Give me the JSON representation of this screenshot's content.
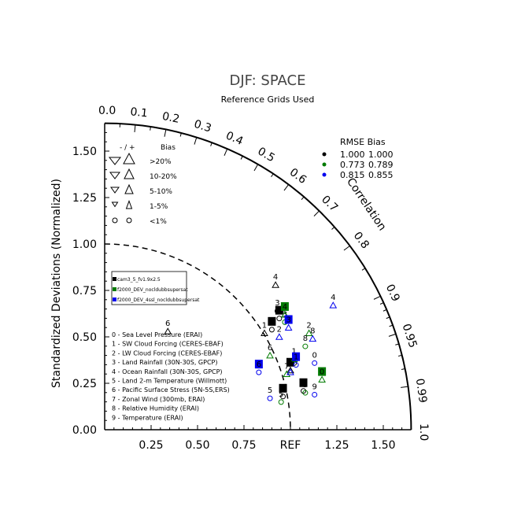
{
  "chart_data": {
    "type": "taylor",
    "title": "DJF: SPACE",
    "subtitle": "Reference Grids Used",
    "ylabel": "Standardized Deviations (Normalized)",
    "correlation_label": "Correlation",
    "ref_label": "REF",
    "xlim": [
      0,
      1.65
    ],
    "ylim": [
      0,
      1.65
    ],
    "x_tick_labels": [
      "0.25",
      "0.50",
      "0.75",
      "REF",
      "1.25",
      "1.50"
    ],
    "y_tick_labels": [
      "0.00",
      "0.25",
      "0.50",
      "0.75",
      "1.00",
      "1.25",
      "1.50"
    ],
    "corr_ticks": [
      {
        "r": 0.0,
        "label": "0.0"
      },
      {
        "r": 0.1,
        "label": "0.1"
      },
      {
        "r": 0.2,
        "label": "0.2"
      },
      {
        "r": 0.3,
        "label": "0.3"
      },
      {
        "r": 0.4,
        "label": "0.4"
      },
      {
        "r": 0.5,
        "label": "0.5"
      },
      {
        "r": 0.6,
        "label": "0.6"
      },
      {
        "r": 0.7,
        "label": "0.7"
      },
      {
        "r": 0.8,
        "label": "0.8"
      },
      {
        "r": 0.9,
        "label": "0.9"
      },
      {
        "r": 0.95,
        "label": "0.95"
      },
      {
        "r": 0.99,
        "label": "0.99"
      },
      {
        "r": 1.0,
        "label": "1.0"
      }
    ],
    "bias_legend": {
      "header": "-  /  +",
      "header_right": "Bias",
      "rows": [
        "&gt;20%",
        "10-20%",
        "5-10%",
        "1-5%",
        "&lt;1%"
      ]
    },
    "rmse_legend": {
      "header": "RMSE  Bias",
      "rows": [
        {
          "color": "#000000",
          "rmse": "1.000",
          "bias": "1.000"
        },
        {
          "color": "#007a00",
          "rmse": "0.773",
          "bias": "0.789"
        },
        {
          "color": "#0000ee",
          "rmse": "0.815",
          "bias": "0.855"
        }
      ]
    },
    "case_legend": [
      {
        "color": "#000000",
        "label": "cam3_5_fv1.9x2.5"
      },
      {
        "color": "#007a00",
        "label": "f2000_DEV_nocldubbsupersat"
      },
      {
        "color": "#0000ee",
        "label": "f2000_DEV_4ssl_nocldubbsupersat"
      }
    ],
    "variables": [
      "0 - Sea Level Pressure (ERAI)",
      "1 - SW Cloud Forcing (CERES-EBAF)",
      "2 - LW Cloud Forcing (CERES-EBAF)",
      "3 - Land Rainfall (30N-30S, GPCP)",
      "4 - Ocean Rainfall (30N-30S, GPCP)",
      "5 - Land 2-m Temperature (Willmott)",
      "6 - Pacific Surface Stress (5N-5S,ERS)",
      "7 - Zonal Wind (300mb, ERAI)",
      "8 - Relative Humidity (ERAI)",
      "9 - Temperature (ERAI)"
    ],
    "series": [
      {
        "color": "#000000",
        "points": [
          {
            "id": "0",
            "x": 1.02,
            "y": 0.38,
            "marker": "circle",
            "boxed": false
          },
          {
            "id": "1",
            "x": 0.86,
            "y": 0.54,
            "marker": "triangle-up",
            "boxed": false
          },
          {
            "id": "2",
            "x": 0.94,
            "y": 0.62,
            "marker": "circle",
            "boxed": true
          },
          {
            "id": "3",
            "x": 0.93,
            "y": 0.66,
            "marker": "circle",
            "boxed": false
          },
          {
            "id": "4",
            "x": 0.92,
            "y": 0.8,
            "marker": "triangle-up",
            "boxed": false
          },
          {
            "id": "5",
            "x": 0.96,
            "y": 0.2,
            "marker": "circle",
            "boxed": true
          },
          {
            "id": "6",
            "x": 0.34,
            "y": 0.55,
            "marker": "triangle-up",
            "boxed": false
          },
          {
            "id": "7",
            "x": 1.0,
            "y": 0.34,
            "marker": "triangle-up",
            "boxed": true
          },
          {
            "id": "8",
            "x": 0.9,
            "y": 0.56,
            "marker": "circle",
            "boxed": true
          },
          {
            "id": "9",
            "x": 1.07,
            "y": 0.23,
            "marker": "circle",
            "boxed": true
          }
        ]
      },
      {
        "color": "#007a00",
        "points": [
          {
            "id": "0",
            "x": 1.17,
            "y": 0.29,
            "marker": "triangle-up",
            "boxed": true
          },
          {
            "id": "1",
            "x": 1.02,
            "y": 0.4,
            "marker": "triangle-up",
            "boxed": false
          },
          {
            "id": "2",
            "x": 1.1,
            "y": 0.54,
            "marker": "triangle-up",
            "boxed": false
          },
          {
            "id": "3",
            "x": 0.97,
            "y": 0.6,
            "marker": "circle",
            "boxed": false
          },
          {
            "id": "4",
            "x": 0.97,
            "y": 0.64,
            "marker": "triangle-up",
            "boxed": true
          },
          {
            "id": "5",
            "x": 0.95,
            "y": 0.17,
            "marker": "circle",
            "boxed": false
          },
          {
            "id": "6",
            "x": 0.89,
            "y": 0.42,
            "marker": "triangle-up",
            "boxed": false
          },
          {
            "id": "7",
            "x": 0.98,
            "y": 0.32,
            "marker": "triangle-up",
            "boxed": false
          },
          {
            "id": "8",
            "x": 1.08,
            "y": 0.47,
            "marker": "circle",
            "boxed": false
          },
          {
            "id": "9",
            "x": 1.08,
            "y": 0.22,
            "marker": "circle",
            "boxed": false
          }
        ]
      },
      {
        "color": "#0000ee",
        "points": [
          {
            "id": "0",
            "x": 1.13,
            "y": 0.38,
            "marker": "circle",
            "boxed": false
          },
          {
            "id": "1",
            "x": 1.03,
            "y": 0.37,
            "marker": "circle",
            "boxed": true
          },
          {
            "id": "2",
            "x": 0.94,
            "y": 0.52,
            "marker": "triangle-up",
            "boxed": false
          },
          {
            "id": "3",
            "x": 0.99,
            "y": 0.57,
            "marker": "triangle-up",
            "boxed": true
          },
          {
            "id": "4",
            "x": 1.23,
            "y": 0.69,
            "marker": "triangle-up",
            "boxed": false
          },
          {
            "id": "5",
            "x": 0.89,
            "y": 0.19,
            "marker": "circle",
            "boxed": false
          },
          {
            "id": "6",
            "x": 0.83,
            "y": 0.33,
            "marker": "circle",
            "boxed": true
          },
          {
            "id": "7",
            "x": 1.0,
            "y": 0.33,
            "marker": "triangle-up",
            "boxed": false
          },
          {
            "id": "8",
            "x": 1.12,
            "y": 0.51,
            "marker": "triangle-up",
            "boxed": false
          },
          {
            "id": "9",
            "x": 1.13,
            "y": 0.21,
            "marker": "circle",
            "boxed": false
          }
        ]
      }
    ]
  }
}
